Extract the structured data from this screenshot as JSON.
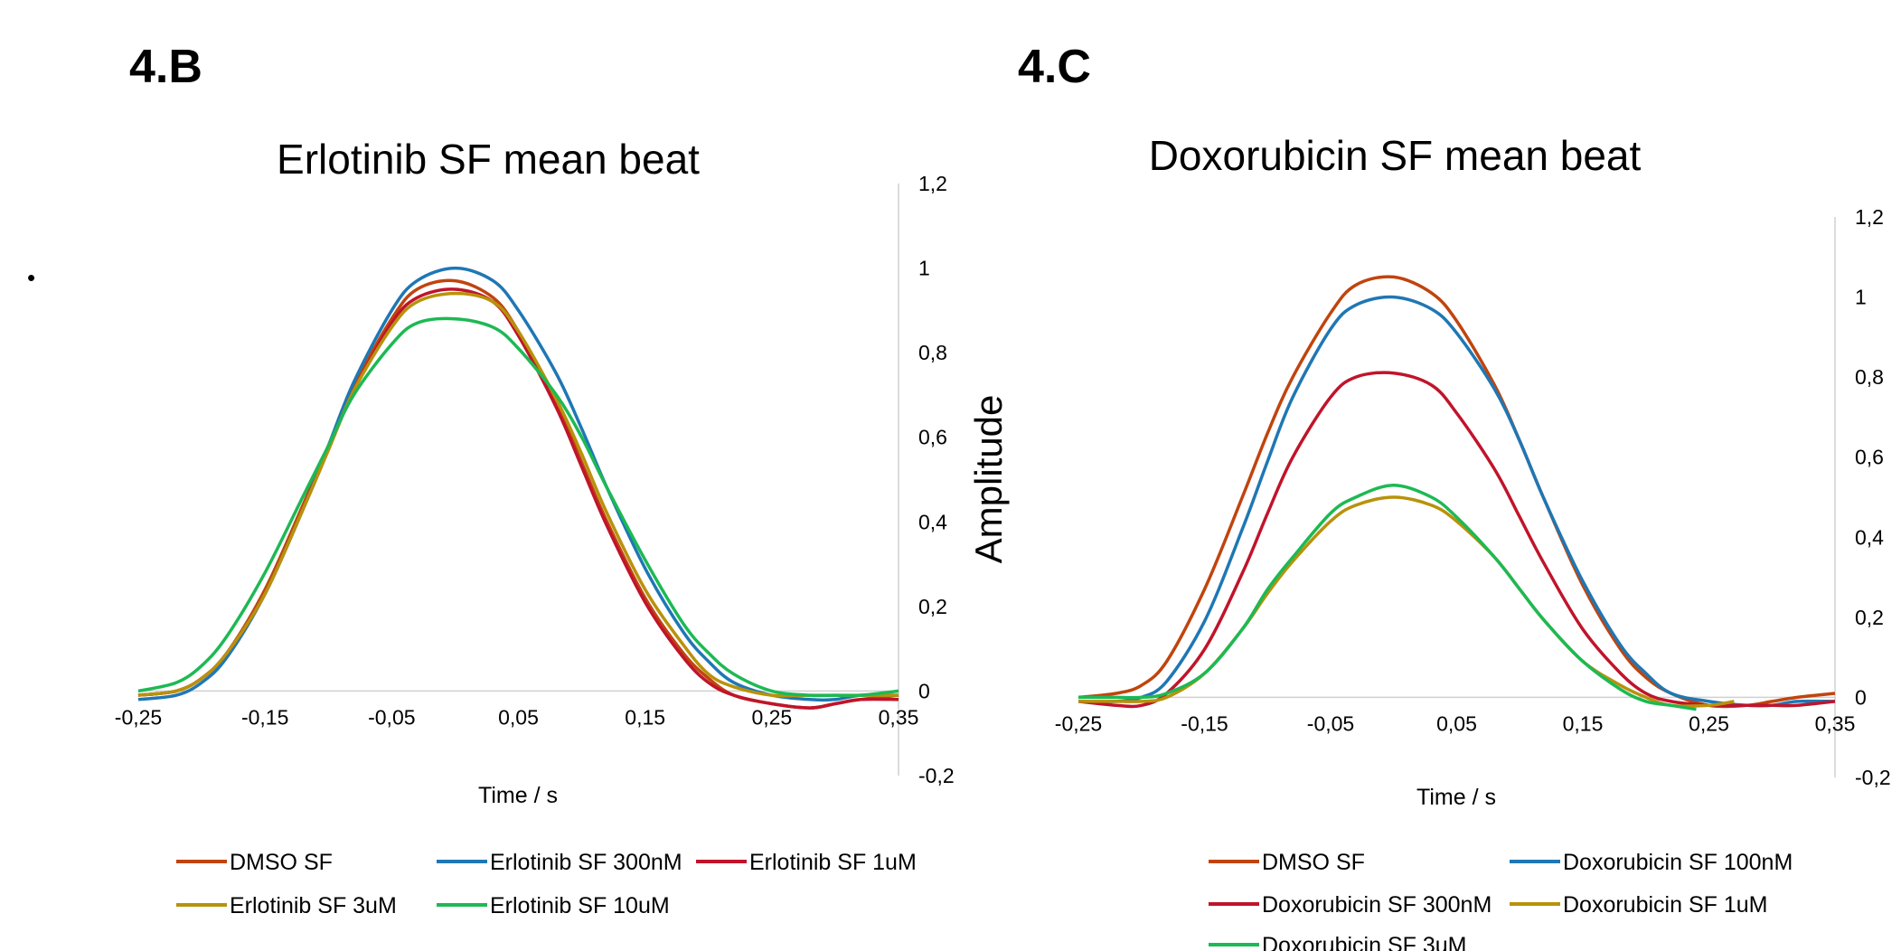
{
  "panel_labels": [
    "4.B",
    "4.C"
  ],
  "stray_mark": "•",
  "shared_ylabel": "Amplitude",
  "chart_data": [
    {
      "type": "line",
      "title": "Erlotinib SF mean beat",
      "xlabel": "Time / s",
      "ylabel": "Amplitude",
      "xlim": [
        -0.25,
        0.35
      ],
      "ylim": [
        -0.2,
        1.2
      ],
      "x_ticks": [
        "-0,25",
        "-0,15",
        "-0,05",
        "0,05",
        "0,15",
        "0,25",
        "0,35"
      ],
      "y_ticks": [
        "-0,2",
        "0",
        "0,2",
        "0,4",
        "0,6",
        "0,8",
        "1",
        "1,2"
      ],
      "legend_position": "bottom",
      "legend_columns": 3,
      "series": [
        {
          "name": "DMSO SF",
          "color": "#c0440e",
          "x": [
            -0.25,
            -0.22,
            -0.2,
            -0.18,
            -0.15,
            -0.12,
            -0.1,
            -0.08,
            -0.05,
            -0.03,
            0,
            0.03,
            0.05,
            0.08,
            0.1,
            0.12,
            0.15,
            0.18,
            0.2,
            0.22,
            0.25,
            0.28,
            0.3,
            0.32,
            0.35
          ],
          "y": [
            -0.01,
            0.0,
            0.03,
            0.09,
            0.24,
            0.44,
            0.58,
            0.72,
            0.88,
            0.95,
            0.97,
            0.93,
            0.85,
            0.68,
            0.54,
            0.4,
            0.22,
            0.09,
            0.03,
            -0.01,
            -0.03,
            -0.04,
            -0.03,
            -0.02,
            -0.01
          ]
        },
        {
          "name": "Erlotinib SF 300nM",
          "color": "#1f77b4",
          "x": [
            -0.25,
            -0.22,
            -0.2,
            -0.18,
            -0.15,
            -0.12,
            -0.1,
            -0.08,
            -0.05,
            -0.03,
            0,
            0.03,
            0.05,
            0.08,
            0.1,
            0.12,
            0.15,
            0.18,
            0.2,
            0.22,
            0.25,
            0.28,
            0.3,
            0.32,
            0.35
          ],
          "y": [
            -0.02,
            -0.01,
            0.02,
            0.08,
            0.23,
            0.43,
            0.58,
            0.73,
            0.9,
            0.97,
            1.0,
            0.97,
            0.9,
            0.75,
            0.62,
            0.48,
            0.29,
            0.14,
            0.07,
            0.02,
            -0.01,
            -0.02,
            -0.02,
            -0.01,
            -0.01
          ]
        },
        {
          "name": "Erlotinib SF 1uM",
          "color": "#c0142b",
          "x": [
            -0.25,
            -0.22,
            -0.2,
            -0.18,
            -0.15,
            -0.12,
            -0.1,
            -0.08,
            -0.05,
            -0.03,
            0,
            0.03,
            0.05,
            0.08,
            0.1,
            0.12,
            0.15,
            0.18,
            0.2,
            0.22,
            0.25,
            0.28,
            0.3,
            0.32,
            0.35
          ],
          "y": [
            -0.01,
            0.0,
            0.03,
            0.09,
            0.23,
            0.43,
            0.57,
            0.71,
            0.87,
            0.93,
            0.95,
            0.92,
            0.84,
            0.67,
            0.53,
            0.39,
            0.21,
            0.08,
            0.02,
            -0.01,
            -0.03,
            -0.04,
            -0.03,
            -0.02,
            -0.02
          ]
        },
        {
          "name": "Erlotinib SF 3uM",
          "color": "#b8920a",
          "x": [
            -0.25,
            -0.22,
            -0.2,
            -0.18,
            -0.15,
            -0.12,
            -0.1,
            -0.08,
            -0.05,
            -0.03,
            0,
            0.03,
            0.05,
            0.08,
            0.1,
            0.12,
            0.15,
            0.18,
            0.2,
            0.22,
            0.25,
            0.28,
            0.3,
            0.32,
            0.35
          ],
          "y": [
            -0.01,
            0.0,
            0.03,
            0.09,
            0.23,
            0.43,
            0.57,
            0.71,
            0.86,
            0.92,
            0.94,
            0.92,
            0.85,
            0.69,
            0.56,
            0.42,
            0.24,
            0.11,
            0.04,
            0.01,
            -0.01,
            -0.01,
            -0.01,
            -0.01,
            -0.01
          ]
        },
        {
          "name": "Erlotinib SF 10uM",
          "color": "#1db954",
          "x": [
            -0.25,
            -0.22,
            -0.2,
            -0.18,
            -0.15,
            -0.12,
            -0.1,
            -0.08,
            -0.05,
            -0.03,
            0,
            0.03,
            0.05,
            0.08,
            0.1,
            0.12,
            0.15,
            0.18,
            0.2,
            0.22,
            0.25,
            0.28,
            0.3,
            0.32,
            0.35
          ],
          "y": [
            0.0,
            0.02,
            0.06,
            0.13,
            0.28,
            0.46,
            0.58,
            0.7,
            0.82,
            0.87,
            0.88,
            0.86,
            0.81,
            0.7,
            0.6,
            0.48,
            0.31,
            0.16,
            0.09,
            0.04,
            0.0,
            -0.01,
            -0.01,
            -0.01,
            0.0
          ]
        }
      ]
    },
    {
      "type": "line",
      "title": "Doxorubicin SF mean beat",
      "xlabel": "Time / s",
      "ylabel": "Amplitude",
      "xlim": [
        -0.25,
        0.35
      ],
      "ylim": [
        -0.2,
        1.2
      ],
      "x_ticks": [
        "-0,25",
        "-0,15",
        "-0,05",
        "0,05",
        "0,15",
        "0,25",
        "0,35"
      ],
      "y_ticks": [
        "-0,2",
        "0",
        "0,2",
        "0,4",
        "0,6",
        "0,8",
        "1",
        "1,2"
      ],
      "legend_position": "bottom",
      "legend_columns": 2,
      "series": [
        {
          "name": "DMSO SF",
          "color": "#c0440e",
          "x": [
            -0.25,
            -0.22,
            -0.2,
            -0.18,
            -0.15,
            -0.12,
            -0.1,
            -0.08,
            -0.05,
            -0.03,
            0,
            0.03,
            0.05,
            0.08,
            0.1,
            0.12,
            0.15,
            0.18,
            0.2,
            0.22,
            0.25,
            0.28,
            0.3,
            0.32,
            0.35
          ],
          "y": [
            0.0,
            0.01,
            0.03,
            0.09,
            0.27,
            0.5,
            0.66,
            0.8,
            0.96,
            1.03,
            1.05,
            1.01,
            0.94,
            0.78,
            0.64,
            0.49,
            0.28,
            0.12,
            0.05,
            0.01,
            -0.02,
            -0.02,
            -0.01,
            0.0,
            0.01
          ]
        },
        {
          "name": "Doxorubicin SF 100nM",
          "color": "#1f77b4",
          "x": [
            -0.25,
            -0.22,
            -0.2,
            -0.18,
            -0.15,
            -0.12,
            -0.1,
            -0.08,
            -0.05,
            -0.03,
            0,
            0.03,
            0.05,
            0.08,
            0.1,
            0.12,
            0.15,
            0.18,
            0.2,
            0.22,
            0.25,
            0.28,
            0.3,
            0.32,
            0.35
          ],
          "y": [
            -0.01,
            -0.01,
            0.0,
            0.04,
            0.19,
            0.42,
            0.59,
            0.75,
            0.92,
            0.98,
            1.0,
            0.97,
            0.91,
            0.77,
            0.64,
            0.49,
            0.29,
            0.13,
            0.06,
            0.01,
            -0.01,
            -0.02,
            -0.02,
            -0.01,
            -0.01
          ]
        },
        {
          "name": "Doxorubicin SF 300nM",
          "color": "#c0142b",
          "x": [
            -0.25,
            -0.22,
            -0.2,
            -0.18,
            -0.15,
            -0.12,
            -0.1,
            -0.08,
            -0.05,
            -0.03,
            0,
            0.03,
            0.05,
            0.08,
            0.1,
            0.12,
            0.15,
            0.18,
            0.2,
            0.22,
            0.25,
            0.28,
            0.3,
            0.32,
            0.35
          ],
          "y": [
            -0.01,
            -0.02,
            -0.02,
            0.01,
            0.12,
            0.31,
            0.46,
            0.6,
            0.75,
            0.8,
            0.81,
            0.78,
            0.71,
            0.57,
            0.45,
            0.33,
            0.17,
            0.06,
            0.01,
            -0.01,
            -0.02,
            -0.02,
            -0.02,
            -0.02,
            -0.01
          ]
        },
        {
          "name": "Doxorubicin SF 1uM",
          "color": "#b8920a",
          "x": [
            -0.25,
            -0.22,
            -0.2,
            -0.18,
            -0.15,
            -0.12,
            -0.1,
            -0.08,
            -0.05,
            -0.03,
            0,
            0.03,
            0.05,
            0.08,
            0.1,
            0.12,
            0.15,
            0.18,
            0.2,
            0.22,
            0.25,
            0.27
          ],
          "y": [
            -0.01,
            -0.01,
            -0.01,
            0.0,
            0.06,
            0.17,
            0.26,
            0.34,
            0.44,
            0.48,
            0.5,
            0.48,
            0.44,
            0.35,
            0.27,
            0.19,
            0.09,
            0.03,
            0.0,
            -0.02,
            -0.02,
            -0.01
          ]
        },
        {
          "name": "Doxorubicin SF 3uM",
          "color": "#1db954",
          "x": [
            -0.25,
            -0.22,
            -0.2,
            -0.18,
            -0.15,
            -0.12,
            -0.1,
            -0.08,
            -0.05,
            -0.03,
            0,
            0.03,
            0.05,
            0.08,
            0.1,
            0.12,
            0.15,
            0.18,
            0.2,
            0.22,
            0.24
          ],
          "y": [
            0.0,
            0.0,
            0.0,
            0.01,
            0.06,
            0.17,
            0.27,
            0.35,
            0.46,
            0.5,
            0.53,
            0.5,
            0.45,
            0.35,
            0.27,
            0.19,
            0.09,
            0.02,
            -0.01,
            -0.02,
            -0.03
          ]
        }
      ]
    }
  ]
}
